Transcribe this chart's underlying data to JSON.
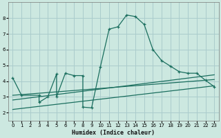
{
  "xlabel": "Humidex (Indice chaleur)",
  "bg_color": "#cce8e0",
  "grid_color": "#aacccc",
  "line_color": "#1a6e5e",
  "xlim": [
    -0.5,
    23.5
  ],
  "ylim": [
    1.5,
    9.0
  ],
  "xticks": [
    0,
    1,
    2,
    3,
    4,
    5,
    6,
    7,
    8,
    9,
    10,
    11,
    12,
    13,
    14,
    15,
    16,
    17,
    18,
    19,
    20,
    21,
    22,
    23
  ],
  "yticks": [
    2,
    3,
    4,
    5,
    6,
    7,
    8
  ],
  "main_series": {
    "x": [
      0,
      1,
      3,
      3,
      4,
      5,
      5,
      6,
      7,
      8,
      8,
      9,
      10,
      11,
      12,
      13,
      14,
      15,
      16,
      17,
      18,
      19,
      20,
      21,
      22,
      23
    ],
    "y": [
      4.2,
      3.1,
      3.1,
      2.65,
      3.0,
      4.45,
      3.0,
      4.5,
      4.35,
      4.35,
      2.35,
      2.3,
      4.9,
      7.3,
      7.45,
      8.2,
      8.1,
      7.6,
      6.0,
      5.3,
      4.95,
      4.6,
      4.5,
      4.5,
      4.05,
      3.65
    ]
  },
  "regression_lines": [
    {
      "x": [
        0,
        23
      ],
      "y": [
        3.1,
        4.1
      ]
    },
    {
      "x": [
        0,
        23
      ],
      "y": [
        2.8,
        4.4
      ]
    },
    {
      "x": [
        0,
        23
      ],
      "y": [
        2.2,
        3.7
      ]
    }
  ]
}
